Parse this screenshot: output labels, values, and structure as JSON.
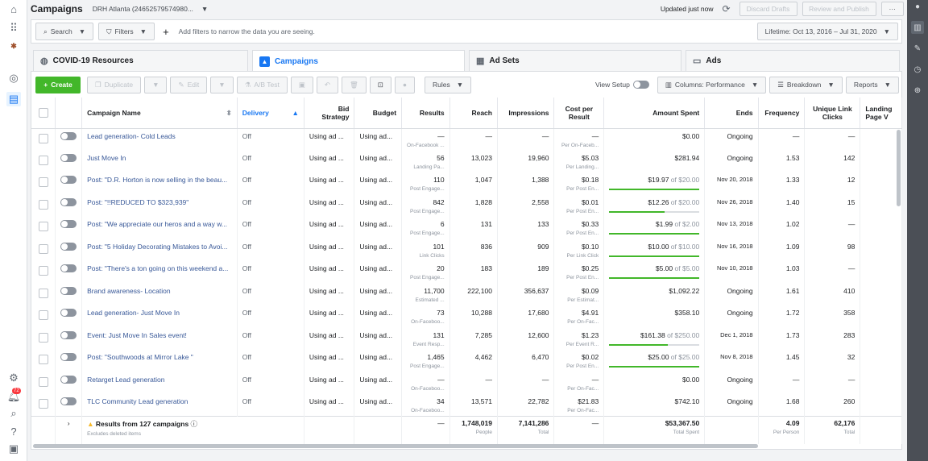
{
  "topbar": {
    "title": "Campaigns",
    "account": "DRH Atlanta (24652579574980...",
    "updated": "Updated just now",
    "discard": "Discard Drafts",
    "review": "Review and Publish",
    "more": "···"
  },
  "filterbar": {
    "search": "Search",
    "filters": "Filters",
    "hint": "Add filters to narrow the data you are seeing.",
    "date_range": "Lifetime: Oct 13, 2016 – Jul 31, 2020"
  },
  "tabs": {
    "covid": "COVID-19 Resources",
    "campaigns": "Campaigns",
    "adsets": "Ad Sets",
    "ads": "Ads"
  },
  "toolbar": {
    "create": "Create",
    "duplicate": "Duplicate",
    "edit": "Edit",
    "abtest": "A/B Test",
    "rules": "Rules",
    "view_setup": "View Setup",
    "columns": "Columns: Performance",
    "breakdown": "Breakdown",
    "reports": "Reports"
  },
  "headers": {
    "name": "Campaign Name",
    "delivery": "Delivery",
    "bid": "Bid Strategy",
    "budget": "Budget",
    "results": "Results",
    "reach": "Reach",
    "impressions": "Impressions",
    "cpr": "Cost per Result",
    "spent": "Amount Spent",
    "ends": "Ends",
    "frequency": "Frequency",
    "ulc": "Unique Link Clicks",
    "landing": "Landing Page V"
  },
  "rows": [
    {
      "name": "Lead generation- Cold Leads",
      "delivery": "Off",
      "bid": "Using ad ...",
      "budget": "Using ad...",
      "results": "—",
      "results_sub": "On-Facebook ...",
      "reach": "—",
      "impressions": "—",
      "cpr": "—",
      "cpr_sub": "Per On-Faceb...",
      "spent": "$0.00",
      "ends": "Ongoing",
      "frequency": "—",
      "ulc": "—"
    },
    {
      "name": "Just Move In",
      "delivery": "Off",
      "bid": "Using ad ...",
      "budget": "Using ad...",
      "results": "56",
      "results_sub": "Landing Pa...",
      "reach": "13,023",
      "impressions": "19,960",
      "cpr": "$5.03",
      "cpr_sub": "Per Landing...",
      "spent": "$281.94",
      "ends": "Ongoing",
      "frequency": "1.53",
      "ulc": "142"
    },
    {
      "name": "Post: \"D.R. Horton is now selling in the beau...",
      "delivery": "Off",
      "bid": "Using ad ...",
      "budget": "Using ad...",
      "results": "110",
      "results_sub": "Post Engage...",
      "reach": "1,047",
      "impressions": "1,388",
      "cpr": "$0.18",
      "cpr_sub": "Per Post En...",
      "spent": "$19.97",
      "spent_of": "of $20.00",
      "spent_pct": 99.9,
      "ends": "Nov 20, 2018",
      "frequency": "1.33",
      "ulc": "12"
    },
    {
      "name": "Post: \"!!REDUCED TO $323,939\"",
      "delivery": "Off",
      "bid": "Using ad ...",
      "budget": "Using ad...",
      "results": "842",
      "results_sub": "Post Engage...",
      "reach": "1,828",
      "impressions": "2,558",
      "cpr": "$0.01",
      "cpr_sub": "Per Post En...",
      "spent": "$12.26",
      "spent_of": "of $20.00",
      "spent_pct": 61.3,
      "ends": "Nov 26, 2018",
      "frequency": "1.40",
      "ulc": "15"
    },
    {
      "name": "Post: \"We appreciate our heros and a way w...",
      "delivery": "Off",
      "bid": "Using ad ...",
      "budget": "Using ad...",
      "results": "6",
      "results_sub": "Post Engage...",
      "reach": "131",
      "impressions": "133",
      "cpr": "$0.33",
      "cpr_sub": "Per Post En...",
      "spent": "$1.99",
      "spent_of": "of $2.00",
      "spent_pct": 99.5,
      "ends": "Nov 13, 2018",
      "frequency": "1.02",
      "ulc": "—"
    },
    {
      "name": "Post: \"5 Holiday Decorating Mistakes to Avoi...",
      "delivery": "Off",
      "bid": "Using ad ...",
      "budget": "Using ad...",
      "results": "101",
      "results_sub": "Link Clicks",
      "reach": "836",
      "impressions": "909",
      "cpr": "$0.10",
      "cpr_sub": "Per Link Click",
      "spent": "$10.00",
      "spent_of": "of $10.00",
      "spent_pct": 100,
      "ends": "Nov 16, 2018",
      "frequency": "1.09",
      "ulc": "98"
    },
    {
      "name": "Post: \"There's a ton going on this weekend a...",
      "delivery": "Off",
      "bid": "Using ad ...",
      "budget": "Using ad...",
      "results": "20",
      "results_sub": "Post Engage...",
      "reach": "183",
      "impressions": "189",
      "cpr": "$0.25",
      "cpr_sub": "Per Post En...",
      "spent": "$5.00",
      "spent_of": "of $5.00",
      "spent_pct": 100,
      "ends": "Nov 10, 2018",
      "frequency": "1.03",
      "ulc": "—"
    },
    {
      "name": "Brand awareness- Location",
      "delivery": "Off",
      "bid": "Using ad ...",
      "budget": "Using ad...",
      "results": "11,700",
      "results_sub": "Estimated ...",
      "reach": "222,100",
      "impressions": "356,637",
      "cpr": "$0.09",
      "cpr_sub": "Per Estimat...",
      "spent": "$1,092.22",
      "ends": "Ongoing",
      "frequency": "1.61",
      "ulc": "410"
    },
    {
      "name": "Lead generation- Just Move In",
      "delivery": "Off",
      "bid": "Using ad ...",
      "budget": "Using ad...",
      "results": "73",
      "results_sub": "On-Faceboo...",
      "reach": "10,288",
      "impressions": "17,680",
      "cpr": "$4.91",
      "cpr_sub": "Per On-Fac...",
      "spent": "$358.10",
      "ends": "Ongoing",
      "frequency": "1.72",
      "ulc": "358"
    },
    {
      "name": "Event: Just Move In Sales event!",
      "delivery": "Off",
      "bid": "Using ad ...",
      "budget": "Using ad...",
      "results": "131",
      "results_sub": "Event Resp...",
      "reach": "7,285",
      "impressions": "12,600",
      "cpr": "$1.23",
      "cpr_sub": "Per Event R...",
      "spent": "$161.38",
      "spent_of": "of $250.00",
      "spent_pct": 64.6,
      "ends": "Dec 1, 2018",
      "frequency": "1.73",
      "ulc": "283"
    },
    {
      "name": "Post: \"Southwoods at Mirror Lake \"",
      "delivery": "Off",
      "bid": "Using ad ...",
      "budget": "Using ad...",
      "results": "1,465",
      "results_sub": "Post Engage...",
      "reach": "4,462",
      "impressions": "6,470",
      "cpr": "$0.02",
      "cpr_sub": "Per Post En...",
      "spent": "$25.00",
      "spent_of": "of $25.00",
      "spent_pct": 100,
      "ends": "Nov 8, 2018",
      "frequency": "1.45",
      "ulc": "32"
    },
    {
      "name": "Retarget Lead generation",
      "delivery": "Off",
      "bid": "Using ad ...",
      "budget": "Using ad...",
      "results": "—",
      "results_sub": "On-Faceboo...",
      "reach": "—",
      "impressions": "—",
      "cpr": "—",
      "cpr_sub": "Per On-Fac...",
      "spent": "$0.00",
      "ends": "Ongoing",
      "frequency": "—",
      "ulc": "—"
    },
    {
      "name": "TLC Community Lead generation",
      "delivery": "Off",
      "bid": "Using ad ...",
      "budget": "Using ad...",
      "results": "34",
      "results_sub": "On-Faceboo...",
      "reach": "13,571",
      "impressions": "22,782",
      "cpr": "$21.83",
      "cpr_sub": "Per On-Fac...",
      "spent": "$742.10",
      "ends": "Ongoing",
      "frequency": "1.68",
      "ulc": "260"
    }
  ],
  "summary": {
    "label": "Results from 127 campaigns",
    "sub": "Excludes deleted items",
    "results": "—",
    "reach": "1,748,019",
    "reach_sub": "People",
    "impressions": "7,141,286",
    "impressions_sub": "Total",
    "cpr": "—",
    "spent": "$53,367.50",
    "spent_sub": "Total Spent",
    "frequency": "4.09",
    "frequency_sub": "Per Person",
    "ulc": "62,176",
    "ulc_sub": "Total"
  },
  "left_nav": {
    "badge": "72"
  },
  "colors": {
    "accent": "#1877f2",
    "create": "#42b72a",
    "link": "#385898"
  }
}
